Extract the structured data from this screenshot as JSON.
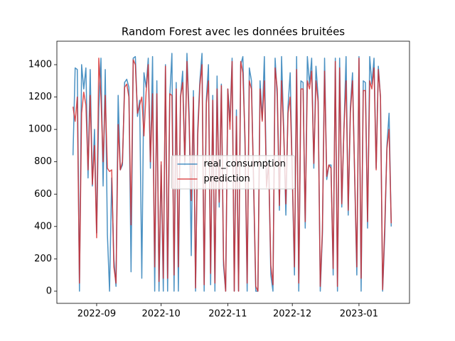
{
  "chart_data": {
    "type": "line",
    "title": "Random Forest avec les données bruitées",
    "x": [
      0,
      1,
      2,
      3,
      4,
      5,
      6,
      7,
      8,
      9,
      10,
      11,
      12,
      13,
      14,
      15,
      16,
      17,
      18,
      19,
      20,
      21,
      22,
      23,
      24,
      25,
      26,
      27,
      28,
      29,
      30,
      31,
      32,
      33,
      34,
      35,
      36,
      37,
      38,
      39,
      40,
      41,
      42,
      43,
      44,
      45,
      46,
      47,
      48,
      49,
      50,
      51,
      52,
      53,
      54,
      55,
      56,
      57,
      58,
      59,
      60,
      61,
      62,
      63,
      64,
      65,
      66,
      67,
      68,
      69,
      70,
      71,
      72,
      73,
      74,
      75,
      76,
      77,
      78,
      79,
      80,
      81,
      82,
      83,
      84,
      85,
      86,
      87,
      88,
      89,
      90,
      91,
      92,
      93,
      94,
      95,
      96,
      97,
      98,
      99,
      100,
      101,
      102,
      103,
      104,
      105,
      106,
      107,
      108,
      109,
      110,
      111,
      112,
      113,
      114,
      115,
      116,
      117,
      118,
      119,
      120,
      121,
      122,
      123,
      124,
      125,
      126,
      127,
      128,
      129,
      130,
      131,
      132,
      133,
      134,
      135,
      136,
      137,
      138,
      139,
      140,
      141,
      142,
      143,
      144,
      145,
      146,
      147,
      148
    ],
    "series": [
      {
        "name": "real_consumption",
        "color": "#1f77b4",
        "values": [
          840,
          1380,
          1370,
          0,
          1400,
          1250,
          1380,
          700,
          1370,
          650,
          1000,
          360,
          1130,
          1440,
          650,
          1370,
          350,
          0,
          700,
          200,
          30,
          1210,
          750,
          780,
          1290,
          1310,
          1260,
          120,
          1440,
          1450,
          1080,
          1180,
          80,
          1350,
          1260,
          1440,
          760,
          1450,
          0,
          1300,
          0,
          780,
          0,
          1400,
          0,
          1200,
          1470,
          0,
          1290,
          0,
          1200,
          1360,
          780,
          1470,
          1100,
          220,
          1240,
          0,
          1000,
          1300,
          1470,
          0,
          1180,
          1400,
          40,
          1210,
          0,
          1330,
          520,
          1280,
          160,
          0,
          1250,
          1050,
          1440,
          0,
          1120,
          0,
          1400,
          1450,
          900,
          0,
          1380,
          1300,
          650,
          0,
          0,
          1300,
          1060,
          1450,
          650,
          800,
          100,
          0,
          1440,
          1200,
          500,
          1450,
          1000,
          470,
          1140,
          1350,
          700,
          100,
          1450,
          0,
          1300,
          1290,
          390,
          1450,
          1280,
          1440,
          760,
          1390,
          1200,
          0,
          350,
          1440,
          690,
          780,
          780,
          100,
          1440,
          0,
          1440,
          520,
          1000,
          1450,
          470,
          1140,
          1350,
          700,
          100,
          1450,
          0,
          1300,
          1290,
          390,
          1450,
          1280,
          1440,
          760,
          1390,
          1200,
          0,
          350,
          900,
          1100,
          400
        ]
      },
      {
        "name": "prediction",
        "color": "#d62728",
        "values": [
          1140,
          1050,
          1200,
          50,
          1100,
          1230,
          1150,
          750,
          1210,
          660,
          900,
          330,
          1440,
          1200,
          800,
          1210,
          760,
          740,
          750,
          150,
          50,
          1030,
          750,
          800,
          1260,
          1280,
          1200,
          410,
          1430,
          1400,
          1100,
          1150,
          1200,
          960,
          1230,
          1400,
          800,
          1220,
          150,
          1220,
          60,
          800,
          80,
          1390,
          80,
          1220,
          1210,
          100,
          1250,
          150,
          1200,
          1290,
          800,
          1420,
          1050,
          560,
          1200,
          20,
          960,
          1270,
          1400,
          40,
          1160,
          1300,
          110,
          1180,
          50,
          1250,
          550,
          1270,
          200,
          0,
          1250,
          1000,
          1420,
          0,
          1080,
          0,
          1420,
          1350,
          950,
          50,
          1300,
          1250,
          680,
          30,
          0,
          1250,
          1050,
          1300,
          640,
          790,
          160,
          40,
          1380,
          1250,
          530,
          1300,
          980,
          540,
          1100,
          1200,
          720,
          150,
          1370,
          50,
          1250,
          1250,
          430,
          1300,
          1250,
          1360,
          790,
          1300,
          1170,
          30,
          380,
          1360,
          710,
          780,
          760,
          140,
          1420,
          30,
          1380,
          540,
          1000,
          1300,
          500,
          1100,
          1300,
          720,
          150,
          1440,
          80,
          1240,
          1240,
          430,
          1300,
          1250,
          1380,
          750,
          1370,
          1200,
          10,
          410,
          880,
          1000,
          420
        ]
      }
    ],
    "xlim": [
      -7.5,
      156.5
    ],
    "xticks": [
      {
        "value": 11,
        "label": "2022-09"
      },
      {
        "value": 41,
        "label": "2022-10"
      },
      {
        "value": 72,
        "label": "2022-11"
      },
      {
        "value": 102,
        "label": "2022-12"
      },
      {
        "value": 133,
        "label": "2023-01"
      }
    ],
    "ylim": [
      -75,
      1545
    ],
    "yticks": [
      0,
      200,
      400,
      600,
      800,
      1000,
      1200,
      1400
    ],
    "legend": "center"
  }
}
